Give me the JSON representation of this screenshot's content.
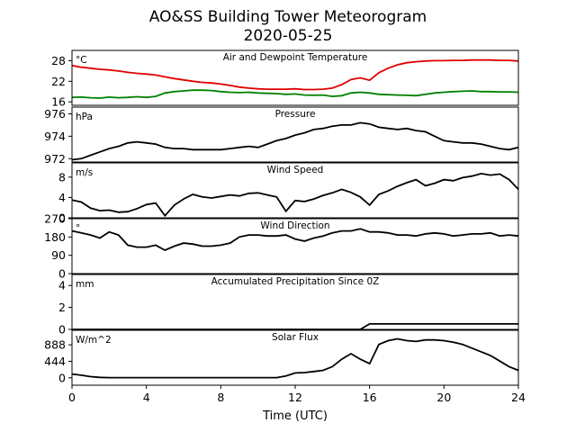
{
  "title": "AO&SS Building Tower Meteorogram",
  "subtitle": "2020-05-25",
  "chart_data": {
    "type": "line",
    "xlabel": "Time (UTC)",
    "xlim": [
      0,
      24
    ],
    "xticks": [
      0,
      4,
      8,
      12,
      16,
      20,
      24
    ],
    "x": [
      0,
      0.5,
      1,
      1.5,
      2,
      2.5,
      3,
      3.5,
      4,
      4.5,
      5,
      5.5,
      6,
      6.5,
      7,
      7.5,
      8,
      8.5,
      9,
      9.5,
      10,
      10.5,
      11,
      11.5,
      12,
      12.5,
      13,
      13.5,
      14,
      14.5,
      15,
      15.5,
      16,
      16.5,
      17,
      17.5,
      18,
      18.5,
      19,
      19.5,
      20,
      20.5,
      21,
      21.5,
      22,
      22.5,
      23,
      23.5,
      24
    ],
    "panels": [
      {
        "title": "Air and Dewpoint Temperature",
        "unit": "°C",
        "ylim": [
          15,
          31
        ],
        "yticks": [
          16,
          22,
          28
        ],
        "series": [
          {
            "color": "#e00000",
            "values": [
              26.6,
              26.1,
              25.8,
              25.5,
              25.3,
              25.0,
              24.6,
              24.3,
              24.1,
              23.8,
              23.3,
              22.8,
              22.4,
              22.0,
              21.7,
              21.5,
              21.2,
              20.8,
              20.3,
              20.0,
              19.8,
              19.7,
              19.7,
              19.7,
              19.8,
              19.6,
              19.6,
              19.7,
              20.0,
              21.0,
              22.5,
              23.0,
              22.3,
              24.5,
              25.8,
              26.8,
              27.4,
              27.7,
              27.9,
              28.0,
              28.0,
              28.1,
              28.1,
              28.2,
              28.2,
              28.2,
              28.1,
              28.1,
              27.9
            ]
          },
          {
            "color": "#008000",
            "values": [
              17.3,
              17.4,
              17.2,
              17.1,
              17.4,
              17.2,
              17.3,
              17.5,
              17.3,
              17.6,
              18.6,
              19.0,
              19.2,
              19.4,
              19.4,
              19.3,
              19.0,
              18.8,
              18.7,
              18.8,
              18.6,
              18.5,
              18.4,
              18.2,
              18.3,
              18.0,
              17.9,
              18.0,
              17.6,
              17.8,
              18.6,
              18.8,
              18.6,
              18.2,
              18.1,
              18.0,
              17.9,
              17.8,
              18.2,
              18.6,
              18.8,
              19.0,
              19.1,
              19.2,
              19.0,
              19.0,
              18.9,
              18.9,
              18.8
            ]
          }
        ]
      },
      {
        "title": "Pressure",
        "unit": "hPa",
        "ylim": [
          971.7,
          976.6
        ],
        "yticks": [
          972,
          974,
          976
        ],
        "series": [
          {
            "color": "#000000",
            "values": [
              971.9,
              972.0,
              972.3,
              972.6,
              972.9,
              973.1,
              973.4,
              973.5,
              973.4,
              973.3,
              973.0,
              972.9,
              972.9,
              972.8,
              972.8,
              972.8,
              972.8,
              972.9,
              973.0,
              973.1,
              973.0,
              973.3,
              973.6,
              973.8,
              974.1,
              974.3,
              974.6,
              974.7,
              974.9,
              975.0,
              975.0,
              975.2,
              975.1,
              974.8,
              974.7,
              974.6,
              974.7,
              974.5,
              974.4,
              974.0,
              973.6,
              973.5,
              973.4,
              973.4,
              973.3,
              973.1,
              972.9,
              972.8,
              973.0
            ]
          }
        ]
      },
      {
        "title": "Wind Speed",
        "unit": "m/s",
        "ylim": [
          0,
          10.8
        ],
        "yticks": [
          0,
          4,
          8
        ],
        "series": [
          {
            "color": "#000000",
            "values": [
              3.5,
              3.1,
              1.9,
              1.4,
              1.5,
              1.1,
              1.2,
              1.8,
              2.6,
              2.9,
              0.4,
              2.5,
              3.7,
              4.6,
              4.1,
              3.9,
              4.2,
              4.5,
              4.3,
              4.8,
              4.9,
              4.5,
              4.1,
              1.3,
              3.4,
              3.2,
              3.7,
              4.4,
              4.9,
              5.6,
              5.0,
              4.1,
              2.5,
              4.6,
              5.3,
              6.2,
              6.9,
              7.5,
              6.3,
              6.8,
              7.5,
              7.3,
              7.9,
              8.2,
              8.7,
              8.4,
              8.6,
              7.5,
              5.6
            ]
          }
        ]
      },
      {
        "title": "Wind Direction",
        "unit": "°",
        "ylim": [
          0,
          270
        ],
        "yticks": [
          0,
          90,
          180,
          270
        ],
        "series": [
          {
            "color": "#000000",
            "values": [
              210,
              200,
              190,
              175,
              205,
              190,
              140,
              130,
              130,
              140,
              115,
              135,
              150,
              145,
              135,
              135,
              140,
              150,
              180,
              190,
              190,
              185,
              185,
              190,
              170,
              160,
              175,
              185,
              200,
              210,
              210,
              220,
              205,
              205,
              200,
              190,
              190,
              185,
              195,
              200,
              195,
              185,
              190,
              195,
              195,
              200,
              185,
              190,
              185
            ]
          }
        ]
      },
      {
        "title": "Accumulated Precipitation Since 0Z",
        "unit": "mm",
        "ylim": [
          0,
          5
        ],
        "yticks": [
          0,
          2,
          4
        ],
        "series": [
          {
            "color": "#000000",
            "values": [
              0,
              0,
              0,
              0,
              0,
              0,
              0,
              0,
              0,
              0,
              0,
              0,
              0,
              0,
              0,
              0,
              0,
              0,
              0,
              0,
              0,
              0,
              0,
              0,
              0,
              0,
              0,
              0,
              0,
              0,
              0,
              0,
              0.5,
              0.5,
              0.5,
              0.5,
              0.5,
              0.5,
              0.5,
              0.5,
              0.5,
              0.5,
              0.5,
              0.5,
              0.5,
              0.5,
              0.5,
              0.5,
              0.5
            ]
          }
        ]
      },
      {
        "title": "Solar Flux",
        "unit": "W/m^2",
        "ylim": [
          -200,
          1280
        ],
        "yticks": [
          0,
          444,
          888
        ],
        "series": [
          {
            "color": "#000000",
            "values": [
              100,
              70,
              30,
              10,
              5,
              5,
              5,
              5,
              5,
              5,
              5,
              5,
              5,
              5,
              5,
              5,
              5,
              5,
              5,
              5,
              5,
              5,
              5,
              50,
              130,
              140,
              170,
              200,
              300,
              500,
              650,
              500,
              380,
              900,
              1000,
              1050,
              1000,
              980,
              1020,
              1020,
              1000,
              960,
              900,
              800,
              700,
              600,
              450,
              300,
              200
            ]
          }
        ]
      }
    ]
  }
}
